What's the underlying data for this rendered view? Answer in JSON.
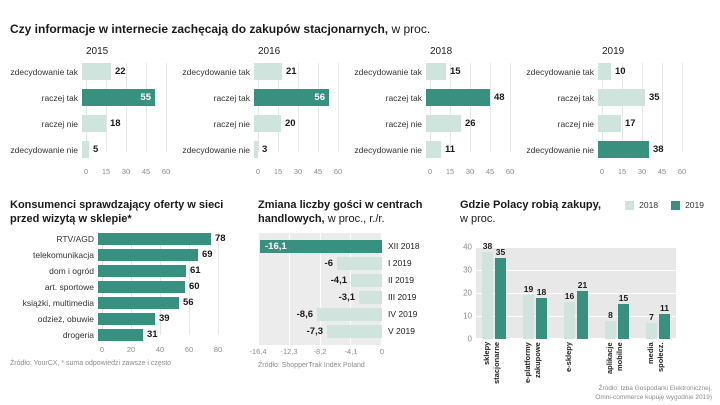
{
  "colors": {
    "dark": "#38917f",
    "light": "#cfe4dd"
  },
  "top": {
    "title_bold": "Czy informacje w internecie zachęcają do zakupów stacjonarnych,",
    "title_rest": "w proc."
  },
  "bottom_left": {
    "title_line1": "Konsumenci sprawdzający oferty w sieci",
    "title_line2": "przed wizytą w sklepie*",
    "source": "Źródło: YourCX, * suma odpowiedzi zawsze i często"
  },
  "bottom_middle": {
    "title_bold": "Zmiana liczby gości w centrach handlowych,",
    "title_rest": "w proc., r./r.",
    "source": "Źródło: ShopperTrak Index Poland"
  },
  "bottom_right": {
    "title_bold": "Gdzie Polacy robią zakupy,",
    "title_rest": "w proc.",
    "source_line1": "Źródło: Izba Gospodarki Elektronicznej,",
    "source_line2": "Omni-commerce kupuję wygodnie 2019)"
  },
  "chart_data": [
    {
      "id": "encourage-2015",
      "type": "bar",
      "orientation": "horizontal",
      "title": "2015",
      "categories": [
        "zdecydowanie tak",
        "raczej tak",
        "raczej nie",
        "zdecydowanie nie"
      ],
      "values": [
        22,
        55,
        18,
        5
      ],
      "labels": [
        "22",
        "55",
        "18",
        "5"
      ],
      "dark": [
        false,
        true,
        false,
        false
      ],
      "value_inside": [
        false,
        true,
        false,
        false
      ],
      "xlim": [
        0,
        60
      ],
      "xticks": [
        "0",
        "15",
        "30",
        "45",
        "60"
      ]
    },
    {
      "id": "encourage-2016",
      "type": "bar",
      "orientation": "horizontal",
      "title": "2016",
      "categories": [
        "zdecydowanie tak",
        "raczej tak",
        "raczej nie",
        "zdecydowanie nie"
      ],
      "values": [
        21,
        56,
        20,
        3
      ],
      "labels": [
        "21",
        "56",
        "20",
        "3"
      ],
      "dark": [
        false,
        true,
        false,
        false
      ],
      "value_inside": [
        false,
        true,
        false,
        false
      ],
      "xlim": [
        0,
        60
      ],
      "xticks": [
        "0",
        "15",
        "30",
        "45",
        "60"
      ]
    },
    {
      "id": "encourage-2018",
      "type": "bar",
      "orientation": "horizontal",
      "title": "2018",
      "categories": [
        "zdecydowanie tak",
        "raczej tak",
        "raczej nie",
        "zdecydowanie nie"
      ],
      "values": [
        15,
        48,
        26,
        11
      ],
      "labels": [
        "15",
        "48",
        "26",
        "11"
      ],
      "dark": [
        false,
        true,
        false,
        false
      ],
      "value_inside": [
        false,
        false,
        false,
        false
      ],
      "xlim": [
        0,
        60
      ],
      "xticks": [
        "0",
        "15",
        "30",
        "45",
        "60"
      ]
    },
    {
      "id": "encourage-2019",
      "type": "bar",
      "orientation": "horizontal",
      "title": "2019",
      "categories": [
        "zdecydowanie tak",
        "raczej tak",
        "raczej nie",
        "zdecydowanie nie"
      ],
      "values": [
        10,
        35,
        17,
        38
      ],
      "labels": [
        "10",
        "35",
        "17",
        "38"
      ],
      "dark": [
        false,
        false,
        false,
        true
      ],
      "value_inside": [
        false,
        false,
        false,
        false
      ],
      "xlim": [
        0,
        60
      ],
      "xticks": [
        "0",
        "15",
        "30",
        "45",
        "60"
      ]
    },
    {
      "id": "consumers-checking-offers",
      "type": "bar",
      "orientation": "horizontal",
      "title": "Konsumenci sprawdzający oferty w sieci przed wizytą w sklepie*",
      "categories": [
        "RTV/AGD",
        "telekomunikacja",
        "dom i ogród",
        "art. sportowe",
        "książki, multimedia",
        "odzież, obuwie",
        "drogeria"
      ],
      "values": [
        78,
        69,
        61,
        60,
        56,
        39,
        31
      ],
      "xlim": [
        0,
        80
      ],
      "xticks": [
        "0",
        "20",
        "40",
        "60",
        "80"
      ]
    },
    {
      "id": "mall-visitors-change",
      "type": "bar",
      "orientation": "horizontal",
      "title": "Zmiana liczby gości w centrach handlowych, w proc., r./r.",
      "categories": [
        "XII 2018",
        "I 2019",
        "II 2019",
        "III 2019",
        "IV 2019",
        "V 2019"
      ],
      "values": [
        -16.1,
        -6,
        -4.1,
        -3.1,
        -8.6,
        -7.3
      ],
      "labels": [
        "-16,1",
        "-6",
        "-4,1",
        "-3,1",
        "-8,6",
        "-7,3"
      ],
      "dark": [
        true,
        false,
        false,
        false,
        false,
        false
      ],
      "value_inside": [
        true,
        false,
        false,
        false,
        false,
        false
      ],
      "xlim": [
        -16.4,
        0
      ],
      "xticks": [
        "-16,4",
        "-12,3",
        "-8,2",
        "-4,1",
        "0"
      ]
    },
    {
      "id": "where-poles-shop",
      "type": "grouped-bar",
      "title": "Gdzie Polacy robią zakupy, w proc.",
      "categories": [
        "sklepy\nstacjonarne",
        "e-platformy\nzakupowe",
        "e-sklepy",
        "aplikacje\nmobilne",
        "media\nspołecz."
      ],
      "series": [
        {
          "name": "2018",
          "values": [
            38,
            19,
            16,
            8,
            7
          ]
        },
        {
          "name": "2019",
          "values": [
            35,
            18,
            21,
            15,
            11
          ]
        }
      ],
      "ylim": [
        0,
        40
      ],
      "yticks": [
        "0",
        "10",
        "20",
        "30",
        "40"
      ],
      "legend_position": "top-right",
      "grid": true
    }
  ]
}
